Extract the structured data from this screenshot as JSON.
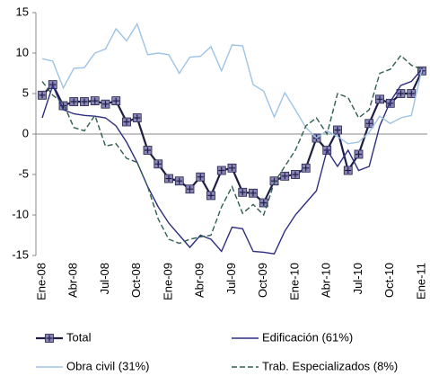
{
  "chart_data": {
    "type": "line",
    "categories": [
      "Ene-08",
      null,
      null,
      "Abr-08",
      null,
      null,
      "Jul-08",
      null,
      null,
      "Oct-08",
      null,
      null,
      "Ene-09",
      null,
      null,
      "Abr-09",
      null,
      null,
      "Jul-09",
      null,
      null,
      "Oct-09",
      null,
      null,
      "Ene-10",
      null,
      null,
      "Abr-10",
      null,
      null,
      "Jul-10",
      null,
      null,
      "Oct-10",
      null,
      null,
      "Ene-11"
    ],
    "ylim": [
      -15,
      15
    ],
    "yticks": [
      -15,
      -10,
      -5,
      0,
      5,
      10,
      15
    ],
    "grid": false,
    "series": [
      {
        "name": "Total",
        "color": "#1f1f45",
        "marker": "#8a86b8",
        "values": [
          4.8,
          6.1,
          3.5,
          4,
          4,
          4.1,
          3.7,
          4.1,
          1.5,
          2,
          -2,
          -3.7,
          -5.5,
          -5.8,
          -6.8,
          -5.3,
          -7.6,
          -4.5,
          -4.2,
          -7.2,
          -7.3,
          -8.5,
          -5.8,
          -5.2,
          -5,
          -4.2,
          -0.5,
          -2,
          0.5,
          -4.5,
          -2.5,
          1.3,
          4.3,
          3.8,
          5,
          5,
          7.8
        ]
      },
      {
        "name": "Edificación (61%)",
        "color": "#2e2e80",
        "values": [
          2,
          6,
          3,
          2.5,
          2.3,
          2.2,
          2,
          1,
          -1,
          -3.5,
          -6.5,
          -9,
          -11,
          -12.5,
          -14,
          -12.5,
          -13,
          -14.5,
          -11.5,
          -11.7,
          -14.5,
          -14.6,
          -14.8,
          -12,
          -10,
          -8.5,
          -7,
          -2,
          -4,
          -2,
          -4.5,
          -4,
          1,
          4,
          6,
          6.5,
          8
        ]
      },
      {
        "name": "Obra civil (31%)",
        "color": "#9dc3e6",
        "values": [
          9.3,
          9,
          5.7,
          8.1,
          8.2,
          10,
          10.5,
          13,
          11.5,
          13.6,
          9.8,
          10,
          9.8,
          7.5,
          9.5,
          9.6,
          10.8,
          7.8,
          11,
          10.9,
          6.1,
          5.3,
          2.1,
          5.1,
          3,
          0.8,
          -0.5,
          0.4,
          -0.3,
          -1.2,
          -1,
          0.2,
          2.2,
          1.3,
          2,
          2.3,
          8
        ]
      },
      {
        "name": "Trab. Especializados (8%)",
        "color": "#2f5e4f",
        "dash": true,
        "values": [
          6.5,
          4.8,
          3.8,
          0.8,
          0.4,
          2.3,
          -1.5,
          -1.2,
          -3,
          -3.5,
          -6.5,
          -10.5,
          -13,
          -13.5,
          -13,
          -12.7,
          -12.5,
          -9,
          -6.5,
          -9.8,
          -8.7,
          -10,
          -6,
          -4,
          -2,
          1,
          2,
          0,
          5,
          4.5,
          2,
          3,
          7.5,
          8,
          9.7,
          8.5,
          8
        ]
      }
    ]
  }
}
